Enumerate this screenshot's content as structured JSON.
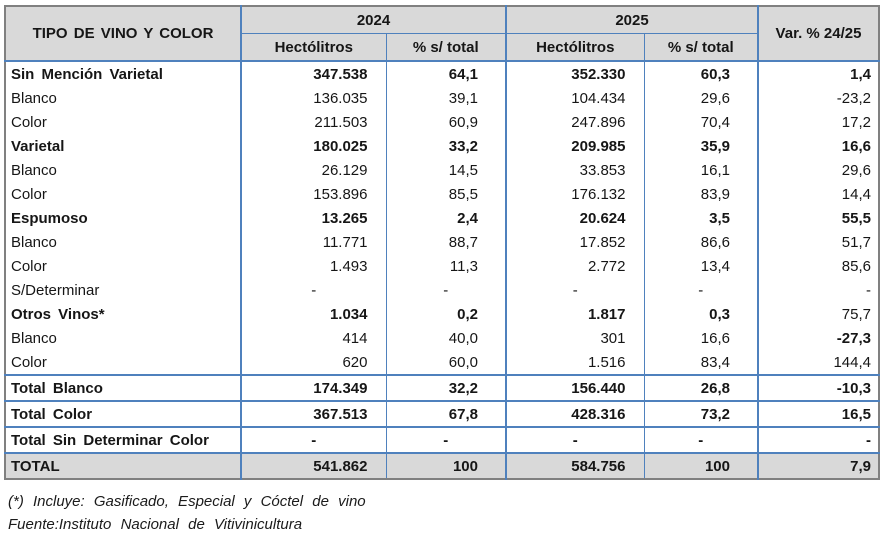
{
  "table": {
    "header": {
      "type_col": "TIPO DE VINO Y COLOR",
      "year_2024": "2024",
      "year_2025": "2025",
      "hectoliters_label": "Hectólitros",
      "pct_label": "% s/ total",
      "var_label": "Var. % 24/25"
    },
    "rows": [
      {
        "label": "Sin Mención Varietal",
        "h24": "347.538",
        "p24": "64,1",
        "h25": "352.330",
        "p25": "60,3",
        "var": "1,4"
      },
      {
        "label": "Blanco",
        "h24": "136.035",
        "p24": "39,1",
        "h25": "104.434",
        "p25": "29,6",
        "var": "-23,2"
      },
      {
        "label": "Color",
        "h24": "211.503",
        "p24": "60,9",
        "h25": "247.896",
        "p25": "70,4",
        "var": "17,2"
      },
      {
        "label": "Varietal",
        "h24": "180.025",
        "p24": "33,2",
        "h25": "209.985",
        "p25": "35,9",
        "var": "16,6"
      },
      {
        "label": "Blanco",
        "h24": "26.129",
        "p24": "14,5",
        "h25": "33.853",
        "p25": "16,1",
        "var": "29,6"
      },
      {
        "label": "Color",
        "h24": "153.896",
        "p24": "85,5",
        "h25": "176.132",
        "p25": "83,9",
        "var": "14,4"
      },
      {
        "label": "Espumoso",
        "h24": "13.265",
        "p24": "2,4",
        "h25": "20.624",
        "p25": "3,5",
        "var": "55,5"
      },
      {
        "label": "Blanco",
        "h24": "11.771",
        "p24": "88,7",
        "h25": "17.852",
        "p25": "86,6",
        "var": "51,7"
      },
      {
        "label": "Color",
        "h24": "1.493",
        "p24": "11,3",
        "h25": "2.772",
        "p25": "13,4",
        "var": "85,6"
      },
      {
        "label": "S/Determinar",
        "h24": "-",
        "p24": "-",
        "h25": "-",
        "p25": "-",
        "var": "-"
      },
      {
        "label": "Otros Vinos*",
        "h24": "1.034",
        "p24": "0,2",
        "h25": "1.817",
        "p25": "0,3",
        "var": "75,7"
      },
      {
        "label": "Blanco",
        "h24": "414",
        "p24": "40,0",
        "h25": "301",
        "p25": "16,6",
        "var": "-27,3"
      },
      {
        "label": "Color",
        "h24": "620",
        "p24": "60,0",
        "h25": "1.516",
        "p25": "83,4",
        "var": "144,4"
      },
      {
        "label": "Total Blanco",
        "h24": "174.349",
        "p24": "32,2",
        "h25": "156.440",
        "p25": "26,8",
        "var": "-10,3"
      },
      {
        "label": "Total Color",
        "h24": "367.513",
        "p24": "67,8",
        "h25": "428.316",
        "p25": "73,2",
        "var": "16,5"
      },
      {
        "label": "Total Sin Determinar Color",
        "h24": "-",
        "p24": "-",
        "h25": "-",
        "p25": "-",
        "var": "-"
      },
      {
        "label": "TOTAL",
        "h24": "541.862",
        "p24": "100",
        "h25": "584.756",
        "p25": "100",
        "var": "7,9"
      }
    ]
  },
  "footnotes": {
    "line1": "(*) Incluye: Gasificado, Especial y Cóctel de vino",
    "line2": "Fuente:Instituto Nacional de Vitivinicultura"
  },
  "colors": {
    "header_fill": "#d9d9d9",
    "total_fill": "#d9d9d9",
    "border_blue": "#4f81bd",
    "border_outer": "#808080",
    "text": "#161616"
  },
  "chart_data": {
    "type": "table",
    "title": "Tipo de vino y color — Hectólitros 2024 vs 2025",
    "columns": [
      "TIPO DE VINO Y COLOR",
      "2024 Hectólitros",
      "2024 % s/ total",
      "2025 Hectólitros",
      "2025 % s/ total",
      "Var. % 24/25"
    ],
    "rows": [
      [
        "Sin Mención Varietal",
        347538,
        64.1,
        352330,
        60.3,
        1.4
      ],
      [
        "Blanco",
        136035,
        39.1,
        104434,
        29.6,
        -23.2
      ],
      [
        "Color",
        211503,
        60.9,
        247896,
        70.4,
        17.2
      ],
      [
        "Varietal",
        180025,
        33.2,
        209985,
        35.9,
        16.6
      ],
      [
        "Blanco",
        26129,
        14.5,
        33853,
        16.1,
        29.6
      ],
      [
        "Color",
        153896,
        85.5,
        176132,
        83.9,
        14.4
      ],
      [
        "Espumoso",
        13265,
        2.4,
        20624,
        3.5,
        55.5
      ],
      [
        "Blanco",
        11771,
        88.7,
        17852,
        86.6,
        51.7
      ],
      [
        "Color",
        1493,
        11.3,
        2772,
        13.4,
        85.6
      ],
      [
        "S/Determinar",
        null,
        null,
        null,
        null,
        null
      ],
      [
        "Otros Vinos*",
        1034,
        0.2,
        1817,
        0.3,
        75.7
      ],
      [
        "Blanco",
        414,
        40.0,
        301,
        16.6,
        -27.3
      ],
      [
        "Color",
        620,
        60.0,
        1516,
        83.4,
        144.4
      ],
      [
        "Total Blanco",
        174349,
        32.2,
        156440,
        26.8,
        -10.3
      ],
      [
        "Total Color",
        367513,
        67.8,
        428316,
        73.2,
        16.5
      ],
      [
        "Total Sin Determinar Color",
        null,
        null,
        null,
        null,
        null
      ],
      [
        "TOTAL",
        541862,
        100,
        584756,
        100,
        7.9
      ]
    ]
  }
}
